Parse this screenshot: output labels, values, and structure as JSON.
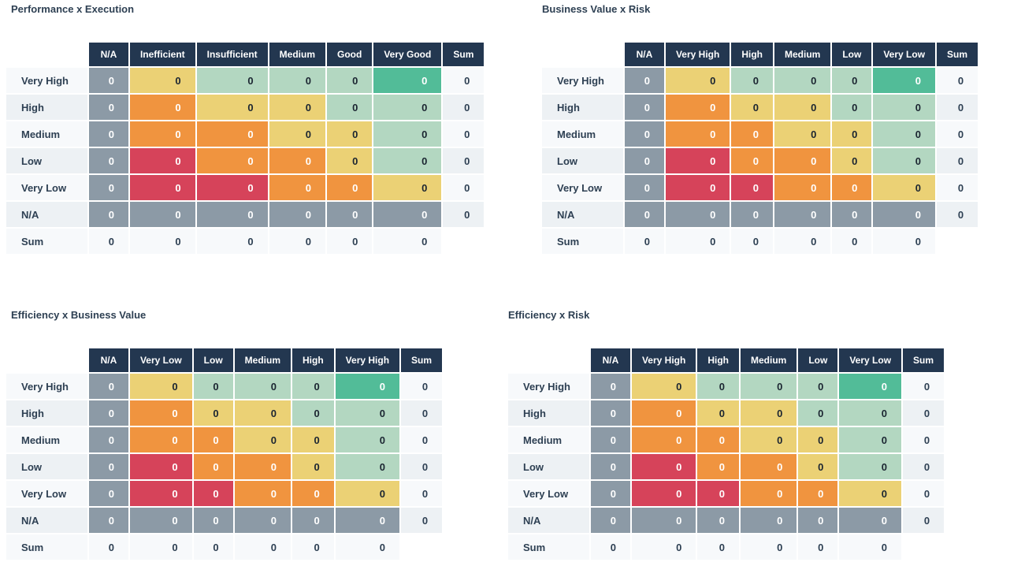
{
  "palette": {
    "header_bg": "#233750",
    "header_text": "#ffffff",
    "title_text": "#2e4053",
    "label_text": "#2e4053",
    "sum_text": "#2e4053",
    "value_dark_text": "#1b2531",
    "gray": "#8c9aa6",
    "yellow": "#ebd175",
    "green": "#b3d7c1",
    "teal": "#52bc98",
    "orange": "#f0943f",
    "red": "#d6435a",
    "stripe_light": "#f7f9fb",
    "stripe_dark": "#edf1f4"
  },
  "sum_label": "Sum",
  "cell_color_pattern": [
    [
      "gray",
      "yellow",
      "green",
      "green",
      "green",
      "teal"
    ],
    [
      "gray",
      "orange",
      "yellow",
      "yellow",
      "green",
      "green"
    ],
    [
      "gray",
      "orange",
      "orange",
      "yellow",
      "yellow",
      "green"
    ],
    [
      "gray",
      "red",
      "orange",
      "orange",
      "yellow",
      "green"
    ],
    [
      "gray",
      "red",
      "red",
      "orange",
      "orange",
      "yellow"
    ],
    [
      "gray",
      "gray",
      "gray",
      "gray",
      "gray",
      "gray"
    ]
  ],
  "chart_data": [
    {
      "type": "heatmap",
      "title": "Performance x Execution",
      "x_categories": [
        "N/A",
        "Inefficient",
        "Insufficient",
        "Medium",
        "Good",
        "Very Good"
      ],
      "y_categories": [
        "Very High",
        "High",
        "Medium",
        "Low",
        "Very Low",
        "N/A"
      ],
      "values": [
        [
          0,
          0,
          0,
          0,
          0,
          0
        ],
        [
          0,
          0,
          0,
          0,
          0,
          0
        ],
        [
          0,
          0,
          0,
          0,
          0,
          0
        ],
        [
          0,
          0,
          0,
          0,
          0,
          0
        ],
        [
          0,
          0,
          0,
          0,
          0,
          0
        ],
        [
          0,
          0,
          0,
          0,
          0,
          0
        ]
      ],
      "row_sums": [
        0,
        0,
        0,
        0,
        0,
        0
      ],
      "col_sums": [
        0,
        0,
        0,
        0,
        0,
        0
      ]
    },
    {
      "type": "heatmap",
      "title": "Business Value x Risk",
      "x_categories": [
        "N/A",
        "Very High",
        "High",
        "Medium",
        "Low",
        "Very Low"
      ],
      "y_categories": [
        "Very High",
        "High",
        "Medium",
        "Low",
        "Very Low",
        "N/A"
      ],
      "values": [
        [
          0,
          0,
          0,
          0,
          0,
          0
        ],
        [
          0,
          0,
          0,
          0,
          0,
          0
        ],
        [
          0,
          0,
          0,
          0,
          0,
          0
        ],
        [
          0,
          0,
          0,
          0,
          0,
          0
        ],
        [
          0,
          0,
          0,
          0,
          0,
          0
        ],
        [
          0,
          0,
          0,
          0,
          0,
          0
        ]
      ],
      "row_sums": [
        0,
        0,
        0,
        0,
        0,
        0
      ],
      "col_sums": [
        0,
        0,
        0,
        0,
        0,
        0
      ]
    },
    {
      "type": "heatmap",
      "title": "Efficiency x Business Value",
      "x_categories": [
        "N/A",
        "Very Low",
        "Low",
        "Medium",
        "High",
        "Very High"
      ],
      "y_categories": [
        "Very High",
        "High",
        "Medium",
        "Low",
        "Very Low",
        "N/A"
      ],
      "values": [
        [
          0,
          0,
          0,
          0,
          0,
          0
        ],
        [
          0,
          0,
          0,
          0,
          0,
          0
        ],
        [
          0,
          0,
          0,
          0,
          0,
          0
        ],
        [
          0,
          0,
          0,
          0,
          0,
          0
        ],
        [
          0,
          0,
          0,
          0,
          0,
          0
        ],
        [
          0,
          0,
          0,
          0,
          0,
          0
        ]
      ],
      "row_sums": [
        0,
        0,
        0,
        0,
        0,
        0
      ],
      "col_sums": [
        0,
        0,
        0,
        0,
        0,
        0
      ]
    },
    {
      "type": "heatmap",
      "title": "Efficiency x Risk",
      "x_categories": [
        "N/A",
        "Very High",
        "High",
        "Medium",
        "Low",
        "Very Low"
      ],
      "y_categories": [
        "Very High",
        "High",
        "Medium",
        "Low",
        "Very Low",
        "N/A"
      ],
      "values": [
        [
          0,
          0,
          0,
          0,
          0,
          0
        ],
        [
          0,
          0,
          0,
          0,
          0,
          0
        ],
        [
          0,
          0,
          0,
          0,
          0,
          0
        ],
        [
          0,
          0,
          0,
          0,
          0,
          0
        ],
        [
          0,
          0,
          0,
          0,
          0,
          0
        ],
        [
          0,
          0,
          0,
          0,
          0,
          0
        ]
      ],
      "row_sums": [
        0,
        0,
        0,
        0,
        0,
        0
      ],
      "col_sums": [
        0,
        0,
        0,
        0,
        0,
        0
      ]
    }
  ]
}
